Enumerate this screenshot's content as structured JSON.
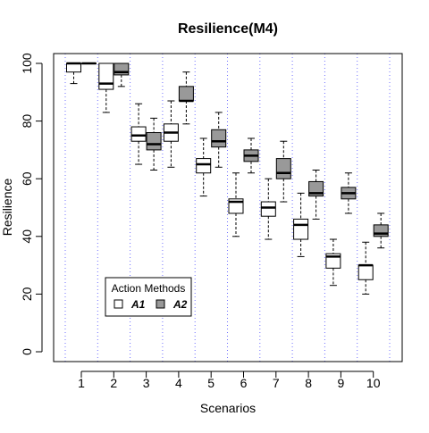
{
  "chart_data": {
    "type": "boxplot",
    "title": "Resilience(M4)",
    "xlabel": "Scenarios",
    "ylabel": "Resilience",
    "categories": [
      "1",
      "2",
      "3",
      "4",
      "5",
      "6",
      "7",
      "8",
      "9",
      "10"
    ],
    "xlim": [
      0.5,
      10.5
    ],
    "ylim": [
      0,
      100
    ],
    "yticks": [
      0,
      20,
      40,
      60,
      80,
      100
    ],
    "grid": "vertical dotted lines between scenarios and at x = 0.5 offsets",
    "legend": {
      "title": "Action Methods",
      "position": "bottom-left",
      "entries": [
        "A1",
        "A2"
      ]
    },
    "colors": {
      "A1": "#ffffff",
      "A2": "#999999",
      "grid": "#7070ff"
    },
    "series": [
      {
        "name": "A1",
        "boxes": [
          {
            "x": 1,
            "min": 93,
            "q1": 97,
            "median": 100,
            "q3": 100,
            "max": 100
          },
          {
            "x": 2,
            "min": 83,
            "q1": 91,
            "median": 93,
            "q3": 100,
            "max": 100
          },
          {
            "x": 3,
            "min": 65,
            "q1": 73,
            "median": 75,
            "q3": 78,
            "max": 86
          },
          {
            "x": 4,
            "min": 64,
            "q1": 73,
            "median": 76,
            "q3": 79,
            "max": 87
          },
          {
            "x": 5,
            "min": 54,
            "q1": 62,
            "median": 65,
            "q3": 67,
            "max": 74
          },
          {
            "x": 6,
            "min": 40,
            "q1": 48,
            "median": 52,
            "q3": 53,
            "max": 62
          },
          {
            "x": 7,
            "min": 39,
            "q1": 47,
            "median": 50,
            "q3": 52,
            "max": 60
          },
          {
            "x": 8,
            "min": 33,
            "q1": 39,
            "median": 44,
            "q3": 46,
            "max": 55
          },
          {
            "x": 9,
            "min": 23,
            "q1": 29,
            "median": 33,
            "q3": 34,
            "max": 39
          },
          {
            "x": 10,
            "min": 20,
            "q1": 25,
            "median": 30,
            "q3": 30,
            "max": 38
          }
        ]
      },
      {
        "name": "A2",
        "boxes": [
          {
            "x": 1,
            "min": 100,
            "q1": 100,
            "median": 100,
            "q3": 100,
            "max": 100
          },
          {
            "x": 2,
            "min": 92,
            "q1": 96,
            "median": 97,
            "q3": 100,
            "max": 100
          },
          {
            "x": 3,
            "min": 63,
            "q1": 70,
            "median": 72,
            "q3": 76,
            "max": 81
          },
          {
            "x": 4,
            "min": 79,
            "q1": 87,
            "median": 87,
            "q3": 92,
            "max": 97
          },
          {
            "x": 5,
            "min": 64,
            "q1": 71,
            "median": 73,
            "q3": 77,
            "max": 83
          },
          {
            "x": 6,
            "min": 62,
            "q1": 66,
            "median": 68,
            "q3": 70,
            "max": 74
          },
          {
            "x": 7,
            "min": 52,
            "q1": 60,
            "median": 62,
            "q3": 67,
            "max": 73
          },
          {
            "x": 8,
            "min": 46,
            "q1": 54,
            "median": 55,
            "q3": 59,
            "max": 63
          },
          {
            "x": 9,
            "min": 48,
            "q1": 53,
            "median": 55,
            "q3": 57,
            "max": 62
          },
          {
            "x": 10,
            "min": 36,
            "q1": 40,
            "median": 41,
            "q3": 44,
            "max": 48
          }
        ]
      }
    ]
  }
}
